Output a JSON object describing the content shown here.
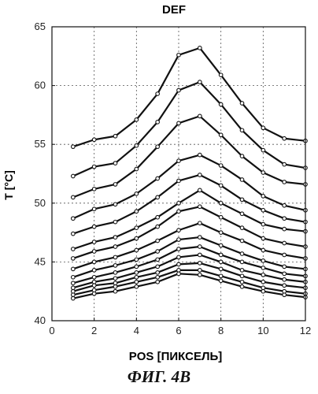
{
  "chart_data": {
    "type": "line",
    "title": "DEF",
    "xlabel": "POS [ПИКСЕЛЬ]",
    "ylabel": "T [°C]",
    "xlim": [
      0,
      12
    ],
    "ylim": [
      40,
      65
    ],
    "xticks": [
      0,
      2,
      4,
      6,
      8,
      10,
      12
    ],
    "yticks": [
      40,
      45,
      50,
      55,
      60,
      65
    ],
    "grid": true,
    "x": [
      1,
      2,
      3,
      4,
      5,
      6,
      7,
      8,
      9,
      10,
      11,
      12
    ],
    "series": [
      {
        "values": [
          54.8,
          55.4,
          55.7,
          57.1,
          59.3,
          62.6,
          63.2,
          60.9,
          58.5,
          56.4,
          55.5,
          55.3
        ]
      },
      {
        "values": [
          52.3,
          53.1,
          53.4,
          54.9,
          56.9,
          59.6,
          60.3,
          58.4,
          56.2,
          54.5,
          53.3,
          53.0
        ]
      },
      {
        "values": [
          50.5,
          51.2,
          51.6,
          52.9,
          54.8,
          56.8,
          57.4,
          55.8,
          54.0,
          52.6,
          51.8,
          51.6
        ]
      },
      {
        "values": [
          48.7,
          49.5,
          49.9,
          50.8,
          52.1,
          53.6,
          54.1,
          53.2,
          52.0,
          50.6,
          49.8,
          49.4
        ]
      },
      {
        "values": [
          47.4,
          48.0,
          48.4,
          49.3,
          50.5,
          51.9,
          52.4,
          51.5,
          50.3,
          49.4,
          48.7,
          48.4
        ]
      },
      {
        "values": [
          46.1,
          46.7,
          47.1,
          47.9,
          48.8,
          50.0,
          51.1,
          50.0,
          49.1,
          48.2,
          47.8,
          47.6
        ]
      },
      {
        "values": [
          45.3,
          45.9,
          46.3,
          47.0,
          48.0,
          49.3,
          49.7,
          48.8,
          47.9,
          47.0,
          46.6,
          46.3
        ]
      },
      {
        "values": [
          44.4,
          45.0,
          45.4,
          46.0,
          46.8,
          47.7,
          48.3,
          47.5,
          46.8,
          46.0,
          45.6,
          45.3
        ]
      },
      {
        "values": [
          43.7,
          44.3,
          44.7,
          45.2,
          45.9,
          46.9,
          47.1,
          46.4,
          45.7,
          45.1,
          44.6,
          44.4
        ]
      },
      {
        "values": [
          43.2,
          43.7,
          44.1,
          44.6,
          45.2,
          46.1,
          46.3,
          45.6,
          45.0,
          44.5,
          44.0,
          43.8
        ]
      },
      {
        "values": [
          42.8,
          43.3,
          43.6,
          44.1,
          44.6,
          45.4,
          45.6,
          45.0,
          44.3,
          43.9,
          43.5,
          43.3
        ]
      },
      {
        "values": [
          42.5,
          43.0,
          43.2,
          43.7,
          44.1,
          44.8,
          44.9,
          44.4,
          43.8,
          43.3,
          43.0,
          42.8
        ]
      },
      {
        "values": [
          42.2,
          42.6,
          42.9,
          43.3,
          43.7,
          44.3,
          44.3,
          43.8,
          43.3,
          42.8,
          42.5,
          42.3
        ]
      },
      {
        "values": [
          41.9,
          42.3,
          42.5,
          42.9,
          43.3,
          44.0,
          43.9,
          43.4,
          42.9,
          42.5,
          42.2,
          42.0
        ]
      }
    ]
  },
  "caption": "ФИГ. 4В",
  "colors": {
    "line": "#111111",
    "marker_fill": "#ffffff",
    "grid": "#555555"
  }
}
